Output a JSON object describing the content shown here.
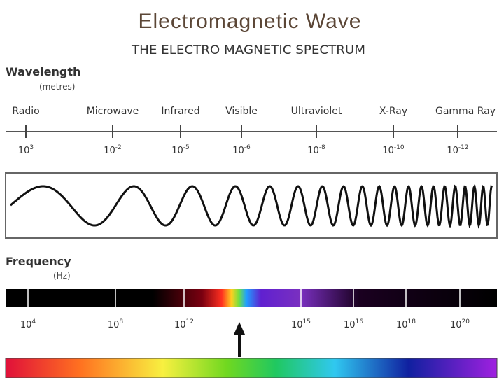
{
  "title": "Electromagnetic Wave",
  "subtitle": "THE ELECTRO MAGNETIC SPECTRUM",
  "wavelength": {
    "label": "Wavelength",
    "unit": "(metres)",
    "bands": [
      {
        "name": "Radio",
        "base": "10",
        "exponent": "3"
      },
      {
        "name": "Microwave",
        "base": "10",
        "exponent": "-2"
      },
      {
        "name": "Infrared",
        "base": "10",
        "exponent": "-5"
      },
      {
        "name": "Visible",
        "base": "10",
        "exponent": "-6"
      },
      {
        "name": "Ultraviolet",
        "base": "10",
        "exponent": "-8"
      },
      {
        "name": "X-Ray",
        "base": "10",
        "exponent": "-10"
      },
      {
        "name": "Gamma Ray",
        "base": "10",
        "exponent": "-12"
      }
    ]
  },
  "frequency": {
    "label": "Frequency",
    "unit": "(Hz)",
    "ticks": [
      {
        "base": "10",
        "exponent": "4"
      },
      {
        "base": "10",
        "exponent": "8"
      },
      {
        "base": "10",
        "exponent": "12"
      },
      {
        "base": "10",
        "exponent": "15"
      },
      {
        "base": "10",
        "exponent": "16"
      },
      {
        "base": "10",
        "exponent": "18"
      },
      {
        "base": "10",
        "exponent": "20"
      }
    ]
  }
}
